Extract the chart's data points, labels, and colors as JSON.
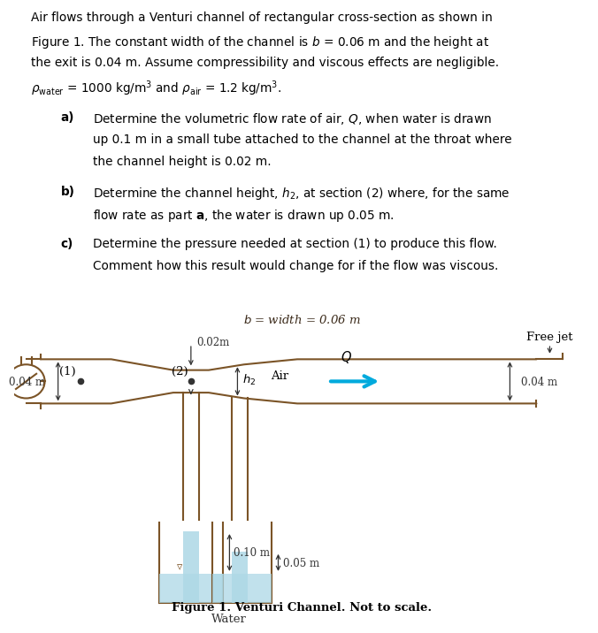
{
  "bg_color": "#ffffff",
  "text_color": "#1a1a1a",
  "channel_color": "#7B5427",
  "water_color": "#ADD8E6",
  "water_alpha": 0.75,
  "arrow_color": "#00AADD",
  "dim_color": "#333333",
  "para_line1": "Air flows through a Venturi channel of rectangular cross-section as shown in",
  "para_line2": "Figure 1. The constant width of the channel is $b$ = 0.06 m and the height at",
  "para_line3": "the exit is 0.04 m. Assume compressibility and viscous effects are negligible.",
  "para_line4": "$\\rho_{\\mathrm{water}}$ = 1000 kg/m$^{3}$ and $\\rho_{\\mathrm{air}}$ = 1.2 kg/m$^{3}$.",
  "a_label": "a)",
  "a_line1": "Determine the volumetric flow rate of air, $Q$, when water is drawn",
  "a_line2": "up 0.1 m in a small tube attached to the channel at the throat where",
  "a_line3": "the channel height is 0.02 m.",
  "b_label": "b)",
  "b_line1": "Determine the channel height, $h_2$, at section (2) where, for the same",
  "b_line2": "flow rate as part $\\mathbf{a}$, the water is drawn up 0.05 m.",
  "c_label": "c)",
  "c_line1": "Determine the pressure needed at section (1) to produce this flow.",
  "c_line2": "Comment how this result would change for if the flow was viscous.",
  "fig_caption": "Figure 1. Venturi Channel. Not to scale.",
  "width_label": "$b$ = width = 0.06 m",
  "throat_label": "|0.02m",
  "label_1": "(1)",
  "label_2": "(2)",
  "h2_label": "$h_2$",
  "air_label": "Air",
  "Q_label": "$Q$",
  "freejet_label": "Free jet",
  "water_label": "Water",
  "dim_004_left": "0.04 m",
  "dim_010": "0.10 m",
  "dim_005": "0.05 m",
  "dim_004_right": "0.04 m"
}
